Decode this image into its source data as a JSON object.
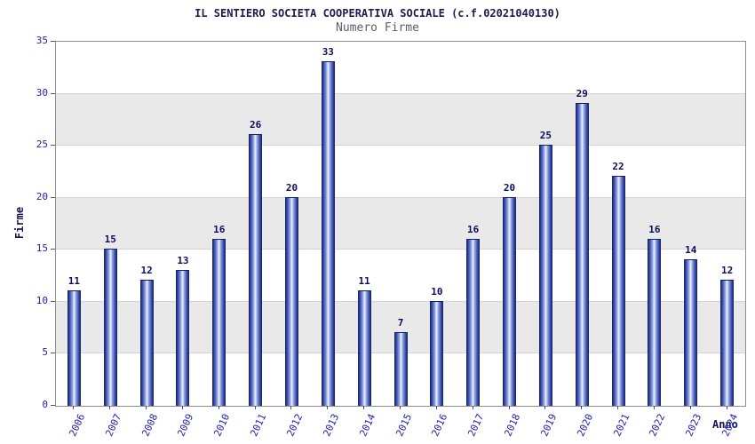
{
  "chart_data": {
    "type": "bar",
    "title": "IL SENTIERO SOCIETA COOPERATIVA SOCIALE (c.f.02021040130)",
    "subtitle": "Numero Firme",
    "xlabel": "Anno",
    "ylabel": "Firme",
    "categories": [
      "2006",
      "2007",
      "2008",
      "2009",
      "2010",
      "2011",
      "2012",
      "2013",
      "2014",
      "2015",
      "2016",
      "2017",
      "2018",
      "2019",
      "2020",
      "2021",
      "2022",
      "2023",
      "2024"
    ],
    "values": [
      11,
      15,
      12,
      13,
      16,
      26,
      20,
      33,
      11,
      7,
      10,
      16,
      20,
      25,
      29,
      22,
      16,
      14,
      12
    ],
    "ylim": [
      0,
      35
    ],
    "ytick_step": 5,
    "yticks": [
      0,
      5,
      10,
      15,
      20,
      25,
      30,
      35
    ],
    "grid": true,
    "background_bands": "alternating-gray",
    "legend": null
  },
  "colors": {
    "bar_edge": "#141f66",
    "bar_center": "#eef3ff",
    "tick_label": "#2323b0",
    "value_label": "#0d0d5e",
    "band": "#e9e9e9",
    "gridline": "#d4d4d4",
    "title": "#1c1c4e",
    "subtitle": "#5f5f5f",
    "axis_label": "#13135a"
  }
}
